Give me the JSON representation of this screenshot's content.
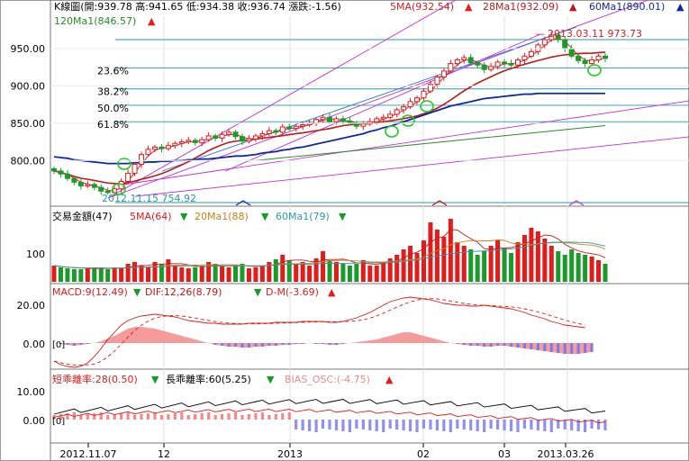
{
  "colors": {
    "up": "#e31b1b",
    "down": "#1a9a2a",
    "ma5": "#d81818",
    "ma20": "#d08018",
    "ma28": "#c01818",
    "ma60": "#1028a0",
    "ma120": "#2a8a2a",
    "teal": "#2a9aa8",
    "purple": "#c030d8",
    "blue_line": "#2a78d8",
    "bias_bar": "#9090f0",
    "macd_pos": "#f48a8a",
    "macd_neg": "#7a7af0"
  },
  "header": {
    "line1_prefix": "K線圖(開:939.78 高:941.65 低:934.38 收:936.74 漲跌:-1.56)",
    "ma5": "5MA(932.54)",
    "ma28": "28Ma1(932.09)",
    "ma60": "60Ma1(890.01)",
    "ma120": "120Ma1(846.57)",
    "arrow_up": "▲",
    "arrow_down": "▼"
  },
  "price_panel": {
    "y_ticks": [
      "950.00",
      "900.00",
      "850.00",
      "800.00"
    ],
    "fib_labels": [
      "23.6%",
      "38.2%",
      "50.0%",
      "61.8%"
    ],
    "high_annotation": "2013.03.11  973.73",
    "low_annotation": "2012.11.15  754.92",
    "high_marker": "—"
  },
  "volume_panel": {
    "title": "交易金額(47)",
    "ma5": "5MA(64)",
    "ma20": "20Ma1(88)",
    "ma60": "60Ma1(79)",
    "y_ticks": [
      "100"
    ]
  },
  "macd_panel": {
    "macd": "MACD:9(12.49)",
    "dif": "DIF:12,26(8.79)",
    "dm": "D-M(-3.69)",
    "y_ticks": [
      "20.00",
      "0.00"
    ],
    "zero_label": "[0]"
  },
  "bias_panel": {
    "short": "短乖離率:28(0.50)",
    "long": "長乖離率:60(5.25)",
    "osc": "BIAS_OSC:(-4.75)",
    "y_ticks": [
      "10.00",
      "0.00"
    ],
    "zero_label": "[0]"
  },
  "x_axis": {
    "labels": [
      "2012.11.07",
      "12",
      "2013",
      "02",
      "03",
      "2013.03.26"
    ]
  },
  "chart_data": {
    "type": "candlestick",
    "close_path": [
      786,
      782,
      776,
      771,
      766,
      768,
      764,
      759,
      757,
      762,
      772,
      783,
      795,
      808,
      815,
      818,
      816,
      820,
      823,
      825,
      827,
      824,
      828,
      833,
      830,
      835,
      838,
      832,
      826,
      829,
      833,
      836,
      840,
      838,
      845,
      843,
      846,
      848,
      850,
      855,
      858,
      852,
      856,
      853,
      850,
      846,
      849,
      852,
      856,
      858,
      862,
      868,
      872,
      879,
      884,
      893,
      902,
      912,
      920,
      930,
      935,
      938,
      931,
      928,
      922,
      926,
      932,
      930,
      928,
      935,
      940,
      946,
      955,
      962,
      968,
      962,
      950,
      940,
      934,
      930,
      935,
      940,
      937
    ],
    "high_value": 973.73,
    "high_date": "2013.03.11",
    "low_value": 754.92,
    "low_date": "2012.11.15",
    "fibonacci": {
      "levels": [
        "23.6%",
        "38.2%",
        "50.0%",
        "61.8%"
      ],
      "values": [
        924,
        896,
        874,
        852
      ]
    },
    "last": {
      "open": 939.78,
      "high": 941.65,
      "low": 934.38,
      "close": 936.74,
      "change": -1.56
    },
    "ma": {
      "ma5": 932.54,
      "ma28": 932.09,
      "ma60": 890.01,
      "ma120": 846.57
    },
    "volume": {
      "ma5": 64,
      "ma20": 88,
      "ma60": 79,
      "count": 47
    },
    "macd": {
      "macd": 12.49,
      "dif": 8.79,
      "dm": -3.69
    },
    "bias": {
      "short": 0.5,
      "long": 5.25,
      "osc": -4.75
    },
    "price_ylim": [
      740,
      985
    ],
    "x_labels": [
      "2012.11.07",
      "12",
      "2013",
      "02",
      "03",
      "2013.03.26"
    ]
  }
}
